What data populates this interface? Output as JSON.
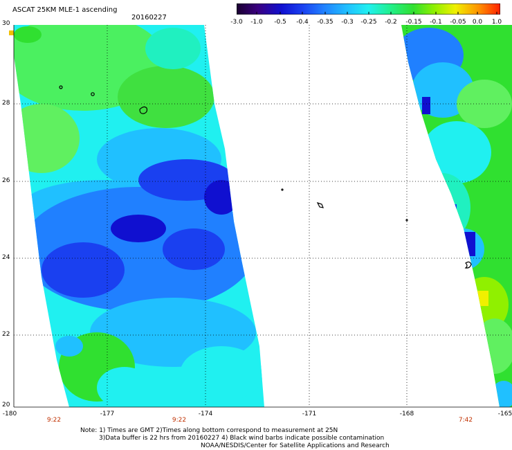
{
  "header": {
    "title": "ASCAT 25KM MLE-1 ascending",
    "date": "20160227"
  },
  "colorbar": {
    "labels": [
      "-3.0",
      "-1.0",
      "-0.5",
      "-0.4",
      "-0.35",
      "-0.3",
      "-0.25",
      "-0.2",
      "-0.15",
      "-0.1",
      "-0.05",
      "0.0",
      "1.0"
    ],
    "colors": [
      "#1a0030",
      "#3a0080",
      "#1010d0",
      "#1a40f0",
      "#2080ff",
      "#20c0ff",
      "#20f0f0",
      "#20f090",
      "#30e030",
      "#90f000",
      "#f0f000",
      "#ff9000",
      "#ff2000"
    ]
  },
  "map": {
    "lat_labels": [
      "30",
      "28",
      "26",
      "24",
      "22",
      "20"
    ],
    "lon_labels": [
      "-180",
      "-177",
      "-174",
      "-171",
      "-168",
      "-165"
    ],
    "time_labels": [
      "9:22",
      "9:22",
      "7:42"
    ],
    "grid_style": "dotted",
    "swath_colors": {
      "green": "#30e030",
      "light_green": "#60f060",
      "cyan": "#20f0f0",
      "light_blue": "#20c0ff",
      "blue": "#2080ff",
      "dark_blue": "#1a40f0",
      "deep_blue": "#1010d0",
      "yellow": "#f0f000"
    }
  },
  "notes": {
    "line1": "Note: 1) Times are GMT 2)Times along bottom correspond to measurement at 25N",
    "line2": "3)Data buffer is 22 hrs from 20160227 4) Black wind barbs indicate possible contamination",
    "line3": "NOAA/NESDIS/Center for Satellite Applications and Research"
  }
}
